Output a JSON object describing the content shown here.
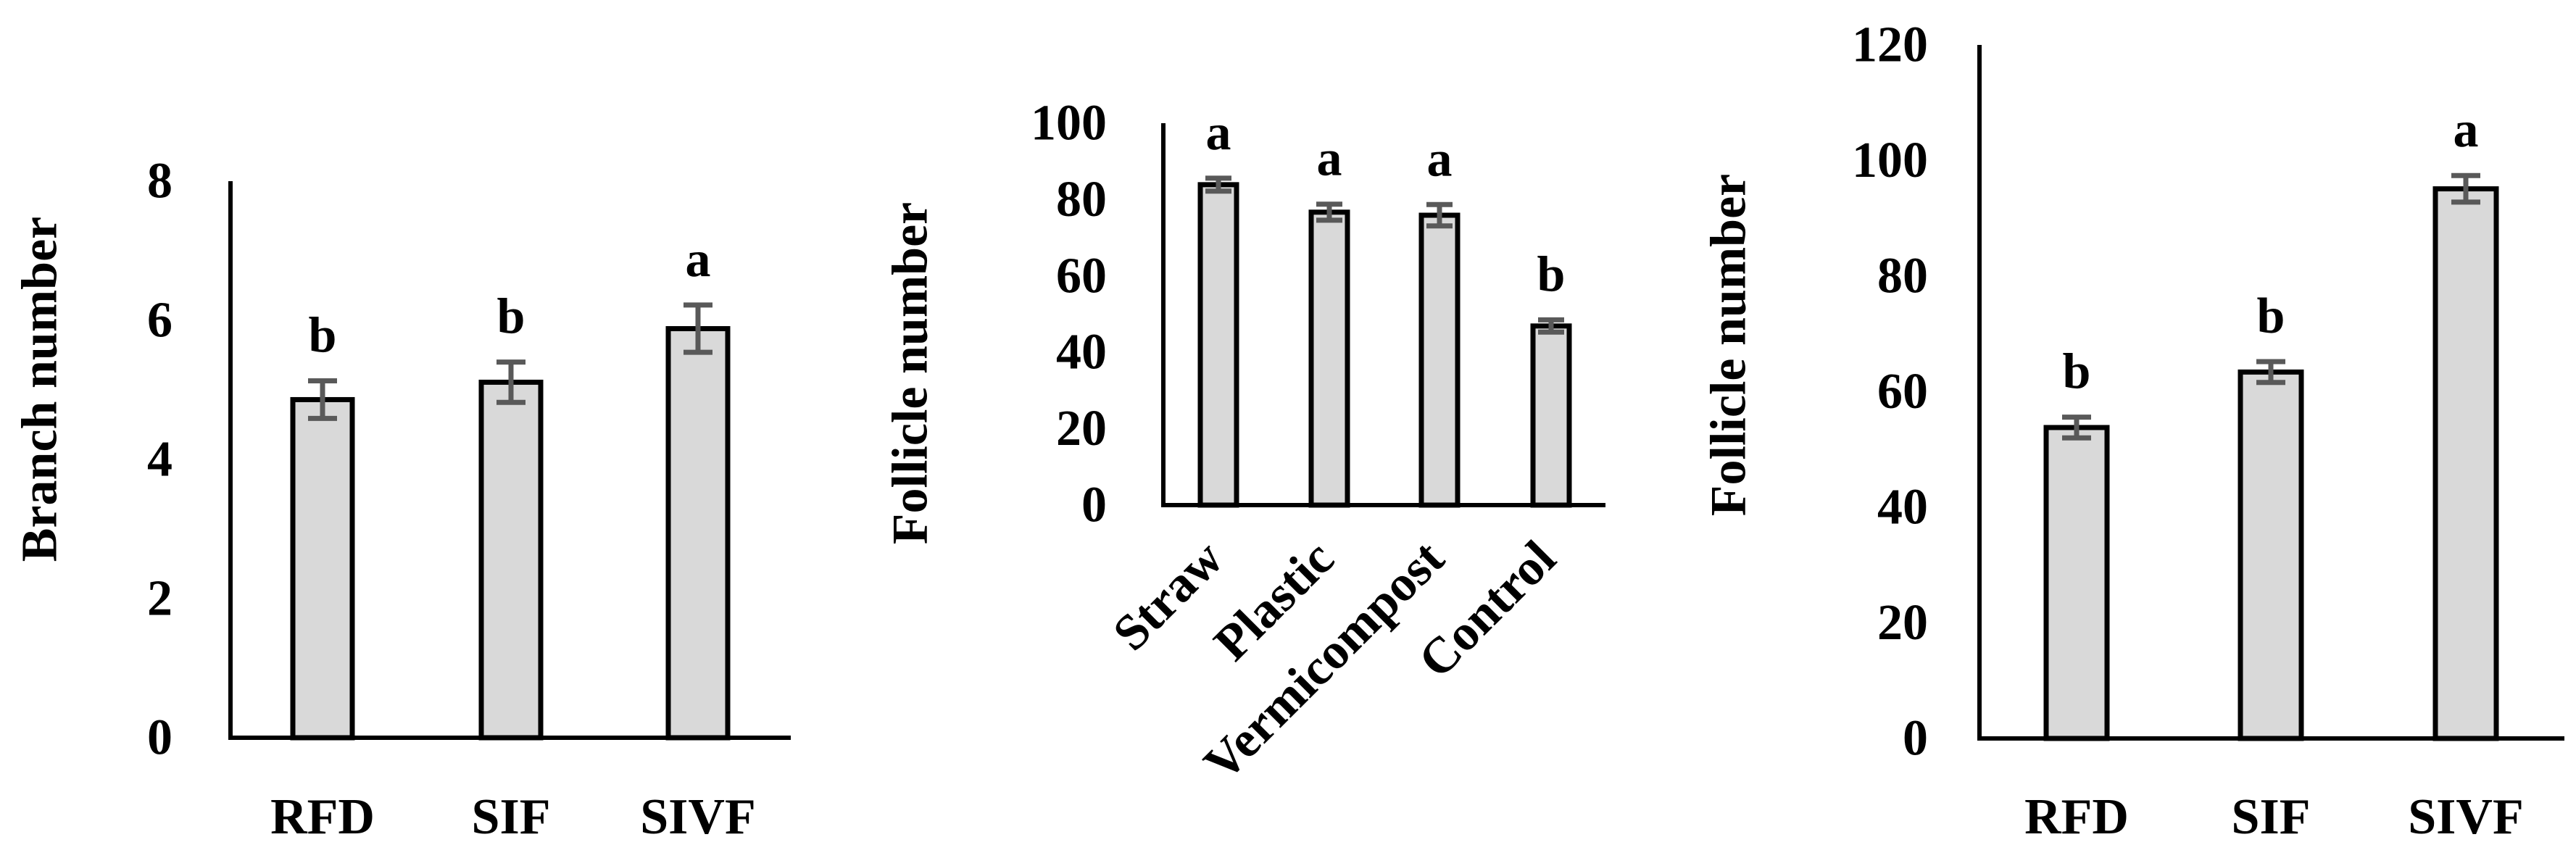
{
  "figure": {
    "colors": {
      "bar_fill": "#d9d9d9",
      "bar_border": "#000000",
      "error_bar": "#595959",
      "axis": "#000000",
      "background": "#ffffff"
    }
  },
  "chart_data": [
    {
      "type": "bar",
      "title": "",
      "xlabel": "",
      "ylabel": "Branch number",
      "categories": [
        "RFD",
        "SIF",
        "SIVF"
      ],
      "values": [
        4.86,
        5.11,
        5.88
      ],
      "errors": [
        0.27,
        0.29,
        0.34
      ],
      "significance": [
        "b",
        "b",
        "a"
      ],
      "ylim": [
        0,
        8
      ],
      "yticks": [
        0,
        2,
        4,
        6,
        8
      ],
      "grid": false,
      "legend": null
    },
    {
      "type": "bar",
      "title": "",
      "xlabel": "",
      "ylabel": "Follicle number",
      "categories": [
        "Straw",
        "Plastic",
        "Vermicompost",
        "Control"
      ],
      "values": [
        83.9,
        76.7,
        75.9,
        46.9
      ],
      "errors": [
        1.7,
        2.1,
        2.8,
        1.6
      ],
      "significance": [
        "a",
        "a",
        "a",
        "b"
      ],
      "ylim": [
        0,
        100
      ],
      "yticks": [
        0,
        20,
        40,
        60,
        80,
        100
      ],
      "xtick_rotation": -45,
      "grid": false,
      "legend": null
    },
    {
      "type": "bar",
      "title": "",
      "xlabel": "",
      "ylabel": "Follicle number",
      "categories": [
        "RFD",
        "SIF",
        "SIVF"
      ],
      "values": [
        53.8,
        63.4,
        95.1
      ],
      "errors": [
        1.8,
        1.8,
        2.3
      ],
      "significance": [
        "b",
        "b",
        "a"
      ],
      "ylim": [
        0,
        120
      ],
      "yticks": [
        0,
        20,
        40,
        60,
        80,
        100,
        120
      ],
      "grid": false,
      "legend": null
    }
  ]
}
